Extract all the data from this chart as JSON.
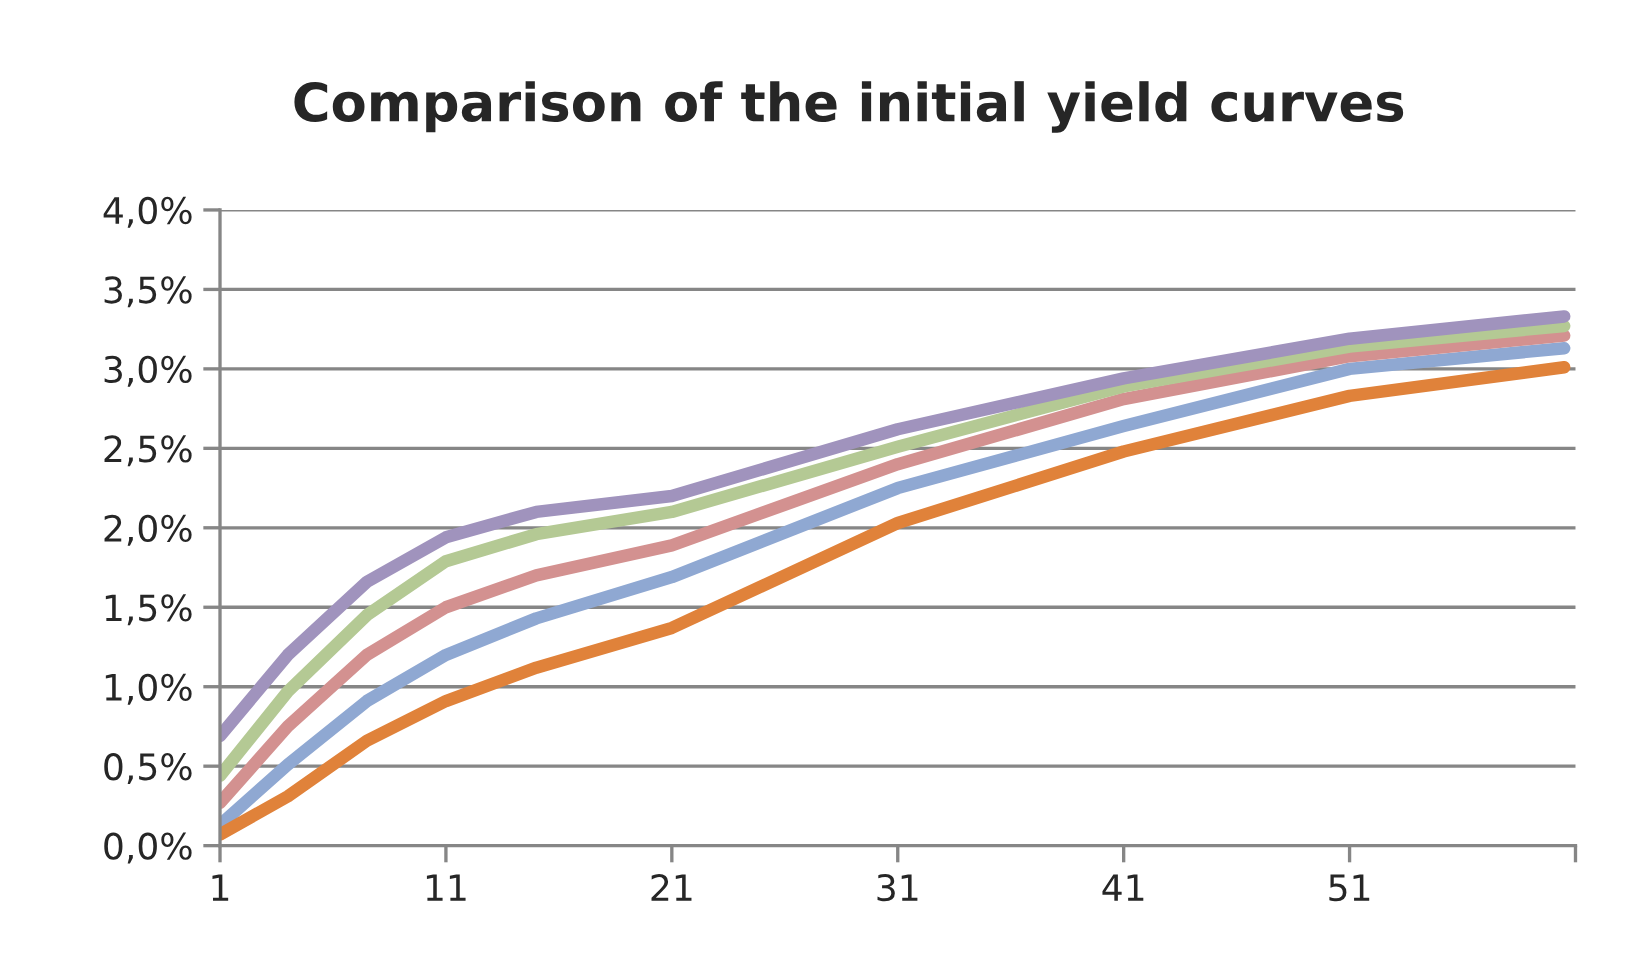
{
  "chart_data": {
    "type": "line",
    "title": "Comparison of the initial yield curves",
    "x": [
      1,
      4,
      7.5,
      11,
      15,
      21,
      31,
      41,
      51,
      60.5
    ],
    "series": [
      {
        "color": "#8fa8d2",
        "values": [
          0.13,
          0.51,
          0.91,
          1.2,
          1.43,
          1.69,
          2.25,
          2.64,
          3.0,
          3.13
        ]
      },
      {
        "color": "#e0823a",
        "values": [
          0.07,
          0.31,
          0.66,
          0.91,
          1.12,
          1.37,
          2.03,
          2.48,
          2.83,
          3.01
        ]
      },
      {
        "color": "#d39190",
        "values": [
          0.27,
          0.75,
          1.2,
          1.5,
          1.7,
          1.89,
          2.4,
          2.81,
          3.08,
          3.21
        ]
      },
      {
        "color": "#b4c994",
        "values": [
          0.44,
          0.97,
          1.45,
          1.79,
          1.96,
          2.1,
          2.51,
          2.89,
          3.14,
          3.27
        ]
      },
      {
        "color": "#a093bd",
        "values": [
          0.69,
          1.2,
          1.66,
          1.94,
          2.1,
          2.2,
          2.62,
          2.94,
          3.19,
          3.33
        ]
      }
    ],
    "xlim": [
      1,
      61
    ],
    "xticks": [
      1,
      11,
      21,
      31,
      41,
      51,
      {
        "value": 61,
        "label": null
      }
    ],
    "ylim": [
      0,
      4
    ],
    "yticks": [
      {
        "value": 0,
        "label": "0,0%"
      },
      {
        "value": 0.5,
        "label": "0,5%"
      },
      {
        "value": 1,
        "label": "1,0%"
      },
      {
        "value": 1.5,
        "label": "1,5%"
      },
      {
        "value": 2,
        "label": "2,0%"
      },
      {
        "value": 2.5,
        "label": "2,5%"
      },
      {
        "value": 3,
        "label": "3,0%"
      },
      {
        "value": 3.5,
        "label": "3,5%"
      },
      {
        "value": 4,
        "label": "4,0%"
      }
    ],
    "grid": "y",
    "marker": "none",
    "line_style": "solid",
    "legend": false
  }
}
